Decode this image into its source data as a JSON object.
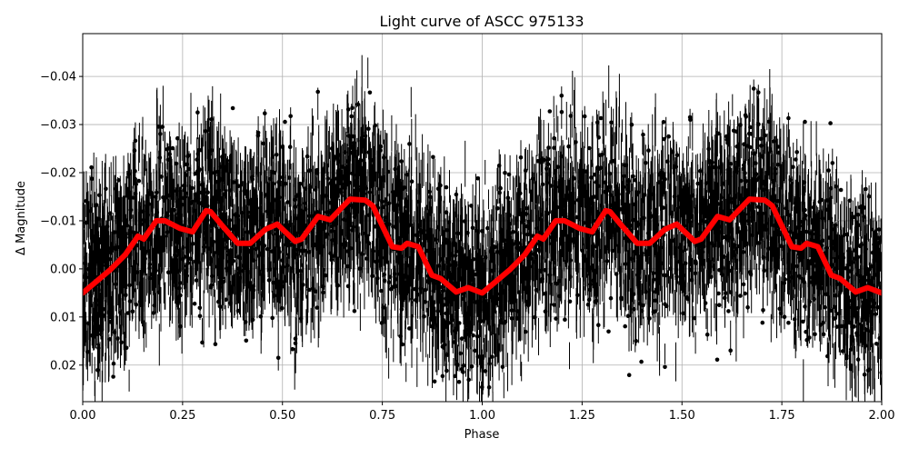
{
  "chart_data": {
    "type": "scatter",
    "title": "Light curve of ASCC 975133",
    "xlabel": "Phase",
    "ylabel": "Δ Magnitude",
    "xlim": [
      0,
      2
    ],
    "ylim": [
      0.0276,
      -0.0489
    ],
    "y_inverted": true,
    "grid": true,
    "xticks": [
      "0.00",
      "0.25",
      "0.50",
      "0.75",
      "1.00",
      "1.25",
      "1.50",
      "1.75",
      "2.00"
    ],
    "xtick_values": [
      0,
      0.25,
      0.5,
      0.75,
      1,
      1.25,
      1.5,
      1.75,
      2
    ],
    "yticks": [
      "−0.04",
      "−0.03",
      "−0.02",
      "−0.01",
      "0.00",
      "0.01",
      "0.02"
    ],
    "ytick_values": [
      -0.04,
      -0.03,
      -0.02,
      -0.01,
      0,
      0.01,
      0.02
    ],
    "colors": {
      "points": "#000000",
      "model": "#ff0000",
      "grid": "#b0b0b0"
    },
    "series": [
      {
        "kind": "scatter-with-errorbars",
        "color": "#000000",
        "typical_range": [
          -0.045,
          0.027
        ]
      },
      {
        "kind": "line",
        "color": "#ff0000",
        "x": [
          0.0,
          0.07,
          0.107,
          0.138,
          0.153,
          0.184,
          0.206,
          0.244,
          0.275,
          0.309,
          0.32,
          0.343,
          0.388,
          0.419,
          0.457,
          0.487,
          0.532,
          0.548,
          0.589,
          0.619,
          0.669,
          0.707,
          0.726,
          0.775,
          0.798,
          0.812,
          0.84,
          0.874,
          0.896,
          0.935,
          0.965,
          1.0,
          1.07,
          1.107,
          1.138,
          1.153,
          1.184,
          1.206,
          1.244,
          1.275,
          1.309,
          1.32,
          1.343,
          1.388,
          1.419,
          1.457,
          1.487,
          1.532,
          1.548,
          1.589,
          1.619,
          1.669,
          1.707,
          1.726,
          1.775,
          1.798,
          1.812,
          1.84,
          1.874,
          1.896,
          1.935,
          1.965,
          2.0
        ],
        "y": [
          0.005,
          0.0001,
          -0.003,
          -0.0068,
          -0.0062,
          -0.01,
          -0.01,
          -0.0084,
          -0.0077,
          -0.0121,
          -0.0119,
          -0.0096,
          -0.0053,
          -0.0053,
          -0.0082,
          -0.0093,
          -0.0057,
          -0.0062,
          -0.0109,
          -0.0102,
          -0.0145,
          -0.0143,
          -0.0131,
          -0.0046,
          -0.0043,
          -0.0053,
          -0.0046,
          0.0013,
          0.002,
          0.0048,
          0.0039,
          0.005,
          0.0001,
          -0.003,
          -0.0068,
          -0.0062,
          -0.01,
          -0.01,
          -0.0084,
          -0.0077,
          -0.0121,
          -0.0119,
          -0.0096,
          -0.0053,
          -0.0053,
          -0.0082,
          -0.0093,
          -0.0057,
          -0.0062,
          -0.0109,
          -0.0102,
          -0.0145,
          -0.0143,
          -0.0131,
          -0.0046,
          -0.0043,
          -0.0053,
          -0.0046,
          0.0013,
          0.002,
          0.0048,
          0.0039,
          0.005
        ]
      }
    ]
  }
}
